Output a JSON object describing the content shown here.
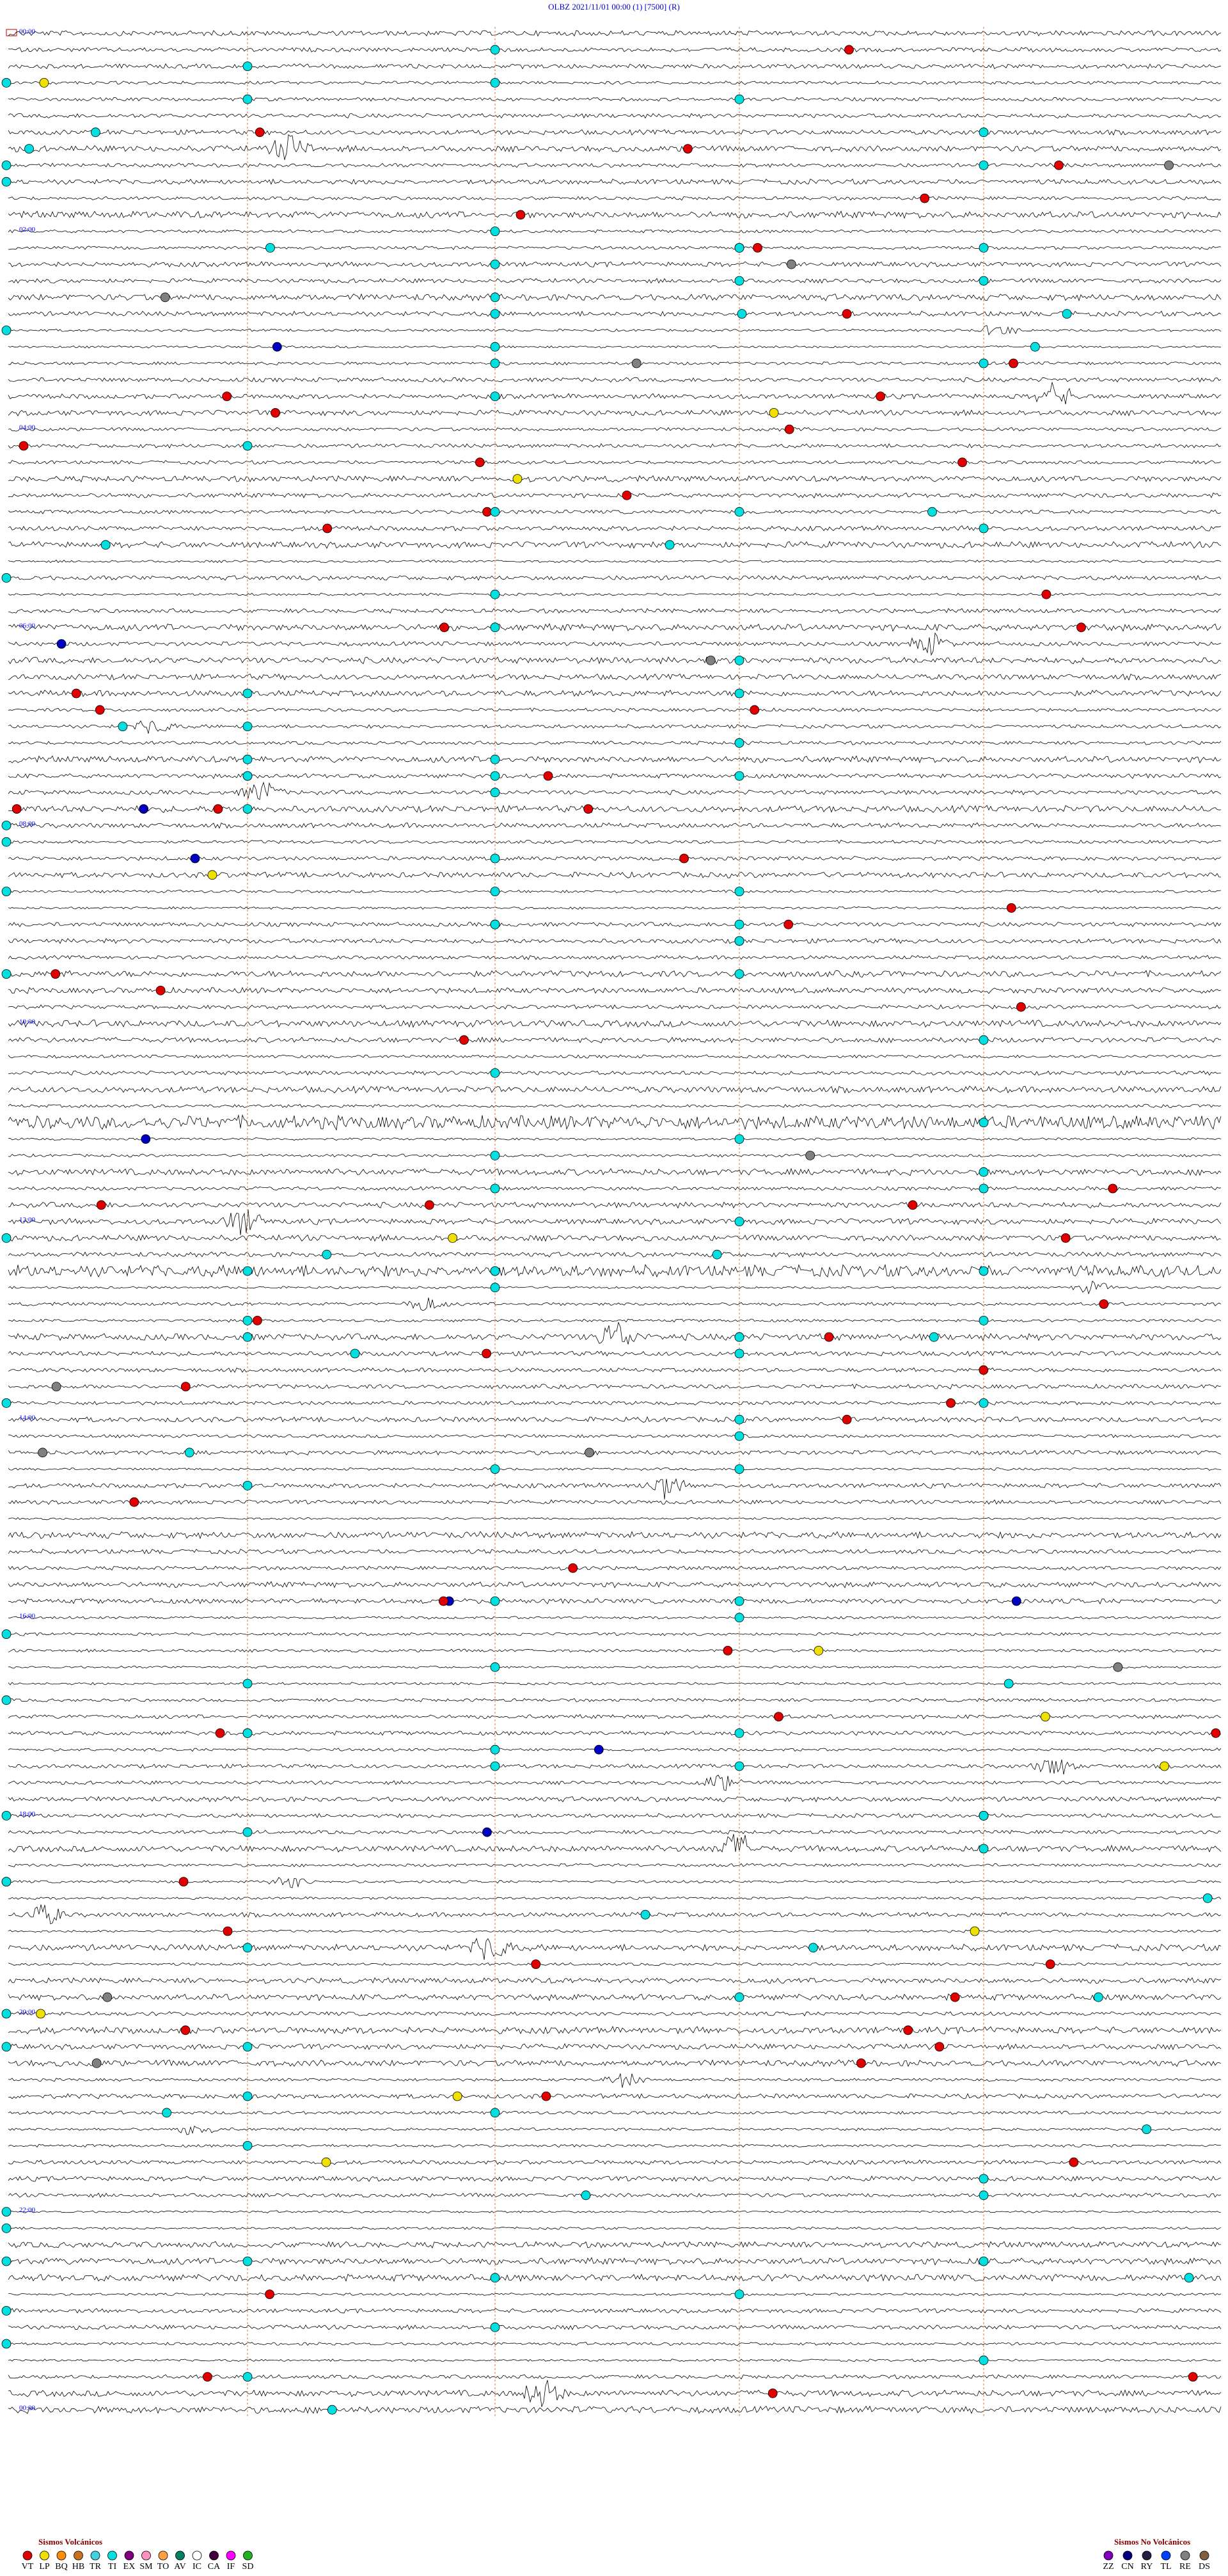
{
  "header": {
    "title": "OLBZ   2021/11/01 00:00   (1)   [7500]  (R)"
  },
  "time_labels": [
    "00:00",
    "02:00",
    "04:00",
    "06:00",
    "08:00",
    "10:00",
    "12:00",
    "14:00",
    "16:00",
    "18:00",
    "20:00",
    "22:00",
    "00:00"
  ],
  "legend_volcanic": {
    "title": "Sismos Volcánicos",
    "items": [
      {
        "code": "VT",
        "color": "#e00000"
      },
      {
        "code": "LP",
        "color": "#f0e000"
      },
      {
        "code": "BQ",
        "color": "#ff8c00"
      },
      {
        "code": "HB",
        "color": "#c87020"
      },
      {
        "code": "TR",
        "color": "#40d0e0"
      },
      {
        "code": "TI",
        "color": "#00e0e0"
      },
      {
        "code": "EX",
        "color": "#800080"
      },
      {
        "code": "SM",
        "color": "#ff90c0"
      },
      {
        "code": "TO",
        "color": "#ffa040"
      },
      {
        "code": "AV",
        "color": "#008060"
      },
      {
        "code": "IC",
        "color": "#ffffff"
      },
      {
        "code": "CA",
        "color": "#400040"
      },
      {
        "code": "IF",
        "color": "#ff00ff"
      },
      {
        "code": "SD",
        "color": "#20b020"
      }
    ]
  },
  "legend_non_volcanic": {
    "title": "Sismos No Volcánicos",
    "items": [
      {
        "code": "ZZ",
        "color": "#8000c0"
      },
      {
        "code": "CN",
        "color": "#000080"
      },
      {
        "code": "RY",
        "color": "#202040"
      },
      {
        "code": "TL",
        "color": "#0040ff"
      },
      {
        "code": "RE",
        "color": "#808080"
      },
      {
        "code": "DS",
        "color": "#806040"
      }
    ]
  }
}
